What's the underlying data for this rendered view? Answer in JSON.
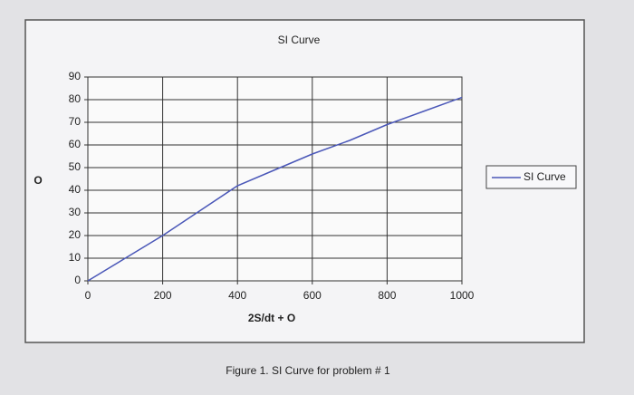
{
  "chart_data": {
    "type": "line",
    "title": "SI Curve",
    "x_label": "2S/dt + O",
    "y_label": "O",
    "x": [
      0,
      100,
      200,
      300,
      400,
      500,
      600,
      700,
      800,
      900,
      1000
    ],
    "series": [
      {
        "name": "SI Curve",
        "color": "#4a57b8",
        "values": [
          0,
          10,
          20,
          31,
          42,
          49,
          56,
          62,
          69,
          75,
          81
        ]
      }
    ],
    "xlim": [
      0,
      1000
    ],
    "xticks": [
      0,
      200,
      400,
      600,
      800,
      1000
    ],
    "ylim": [
      0,
      90
    ],
    "yticks": [
      0,
      10,
      20,
      30,
      40,
      50,
      60,
      70,
      80,
      90
    ],
    "grid": true,
    "legend": "right"
  },
  "caption": "Figure 1. SI Curve for problem # 1"
}
